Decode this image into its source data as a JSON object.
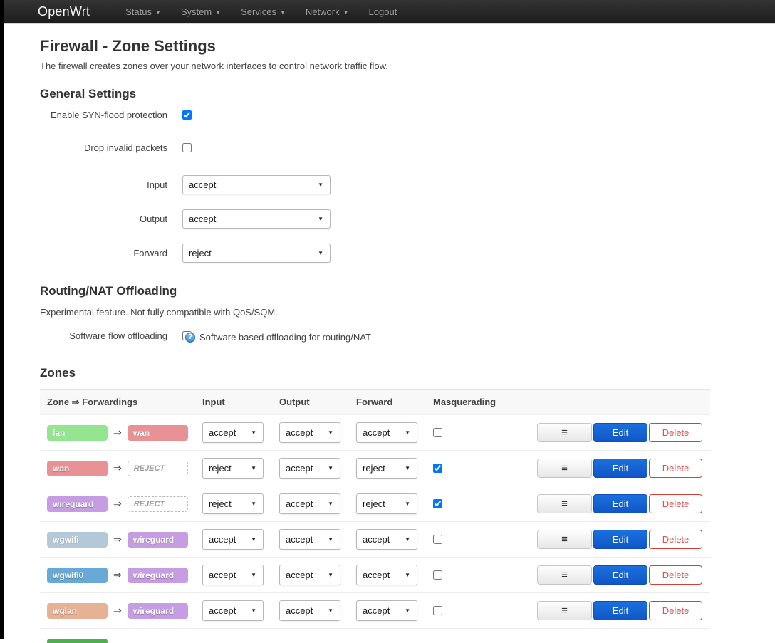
{
  "navbar": {
    "brand": "OpenWrt",
    "items": [
      {
        "label": "Status",
        "caret": true
      },
      {
        "label": "System",
        "caret": true
      },
      {
        "label": "Services",
        "caret": true
      },
      {
        "label": "Network",
        "caret": true
      },
      {
        "label": "Logout",
        "caret": false
      }
    ]
  },
  "page": {
    "title": "Firewall - Zone Settings",
    "subtitle": "The firewall creates zones over your network interfaces to control network traffic flow."
  },
  "general": {
    "heading": "General Settings",
    "fields": [
      {
        "label": "Enable SYN-flood protection",
        "type": "checkbox",
        "checked": true
      },
      {
        "label": "Drop invalid packets",
        "type": "checkbox",
        "checked": false
      },
      {
        "label": "Input",
        "type": "select",
        "value": "accept"
      },
      {
        "label": "Output",
        "type": "select",
        "value": "accept"
      },
      {
        "label": "Forward",
        "type": "select",
        "value": "reject"
      }
    ]
  },
  "offloading": {
    "heading": "Routing/NAT Offloading",
    "note": "Experimental feature. Not fully compatible with QoS/SQM.",
    "label": "Software flow offloading",
    "checked": false,
    "help_icon": "?",
    "help_text": "Software based offloading for routing/NAT"
  },
  "zones": {
    "heading": "Zones",
    "columns": [
      "Zone ⇒ Forwardings",
      "Input",
      "Output",
      "Forward",
      "Masquerading"
    ],
    "arrow": "⇒",
    "actions": {
      "menu": "≡",
      "edit": "Edit",
      "delete": "Delete"
    },
    "rows": [
      {
        "zone": "lan",
        "zone_color": "#94e590",
        "dest": "wan",
        "dest_color": "#e89295",
        "dest_reject": false,
        "input": "accept",
        "output": "accept",
        "forward": "accept",
        "masquerading": false
      },
      {
        "zone": "wan",
        "zone_color": "#e89295",
        "dest": "REJECT",
        "dest_color": "",
        "dest_reject": true,
        "input": "reject",
        "output": "accept",
        "forward": "reject",
        "masquerading": true
      },
      {
        "zone": "wireguard",
        "zone_color": "#c69de2",
        "dest": "REJECT",
        "dest_color": "",
        "dest_reject": true,
        "input": "reject",
        "output": "accept",
        "forward": "reject",
        "masquerading": true
      },
      {
        "zone": "wgwifi",
        "zone_color": "#b4c9d8",
        "dest": "wireguard",
        "dest_color": "#c69de2",
        "dest_reject": false,
        "input": "accept",
        "output": "accept",
        "forward": "accept",
        "masquerading": false
      },
      {
        "zone": "wgwifi0",
        "zone_color": "#68a9d8",
        "dest": "wireguard",
        "dest_color": "#c69de2",
        "dest_reject": false,
        "input": "accept",
        "output": "accept",
        "forward": "accept",
        "masquerading": false
      },
      {
        "zone": "wglan",
        "zone_color": "#e7b294",
        "dest": "wireguard",
        "dest_color": "#c69de2",
        "dest_reject": false,
        "input": "accept",
        "output": "accept",
        "forward": "accept",
        "masquerading": false
      }
    ],
    "partial_next_zone_color": "#4fae4f"
  }
}
